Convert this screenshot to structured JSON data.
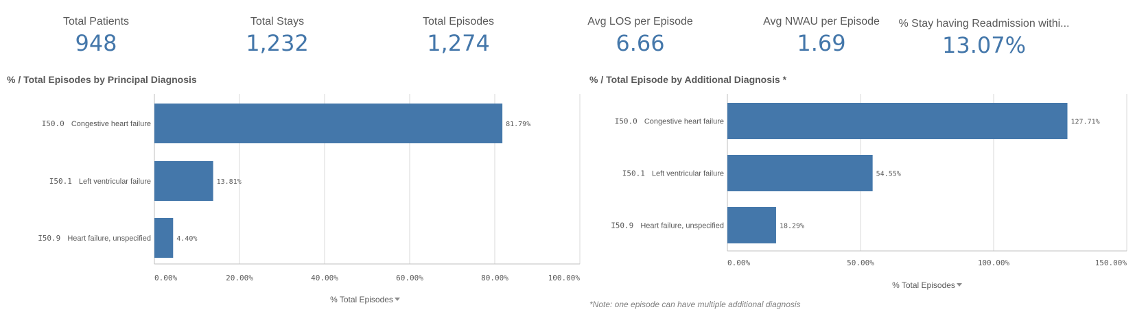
{
  "kpis": [
    {
      "label": "Total Patients",
      "value": "948"
    },
    {
      "label": "Total Stays",
      "value": "1,232"
    },
    {
      "label": "Total Episodes",
      "value": "1,274"
    },
    {
      "label": "Avg LOS per Episode",
      "value": "6.66"
    },
    {
      "label": "Avg NWAU per Episode",
      "value": "1.69"
    },
    {
      "label": "% Stay having Readmission withi...",
      "value": "13.07%"
    }
  ],
  "colors": {
    "bar": "#4477aa",
    "kpi_value": "#4477aa",
    "grid": "#d9d9d9",
    "text": "#595959"
  },
  "icons": {
    "axis_dropdown": "caret-down-icon"
  },
  "note": "*Note: one episode can have multiple additional diagnosis",
  "chart_data": [
    {
      "type": "bar",
      "orientation": "horizontal",
      "title": "% / Total Episodes by Principal Diagnosis",
      "categories": [
        {
          "code": "I50.0",
          "name": "Congestive heart failure"
        },
        {
          "code": "I50.1",
          "name": "Left ventricular failure"
        },
        {
          "code": "I50.9",
          "name": "Heart failure, unspecified"
        }
      ],
      "values": [
        81.79,
        13.81,
        4.4
      ],
      "value_labels": [
        "81.79%",
        "13.81%",
        "4.40%"
      ],
      "xlim": [
        0,
        100
      ],
      "ticks": [
        0,
        20,
        40,
        60,
        80,
        100
      ],
      "tick_labels": [
        "0.00%",
        "20.00%",
        "40.00%",
        "60.00%",
        "80.00%",
        "100.00%"
      ],
      "xlabel": "% Total Episodes",
      "grid": true
    },
    {
      "type": "bar",
      "orientation": "horizontal",
      "title": "% / Total Episode by Additional Diagnosis *",
      "categories": [
        {
          "code": "I50.0",
          "name": "Congestive heart failure"
        },
        {
          "code": "I50.1",
          "name": "Left ventricular failure"
        },
        {
          "code": "I50.9",
          "name": "Heart failure, unspecified"
        }
      ],
      "values": [
        127.71,
        54.55,
        18.29
      ],
      "value_labels": [
        "127.71%",
        "54.55%",
        "18.29%"
      ],
      "xlim": [
        0,
        150
      ],
      "ticks": [
        0,
        50,
        100,
        150
      ],
      "tick_labels": [
        "0.00%",
        "50.00%",
        "100.00%",
        "150.00%"
      ],
      "xlabel": "% Total Episodes",
      "grid": true
    }
  ]
}
